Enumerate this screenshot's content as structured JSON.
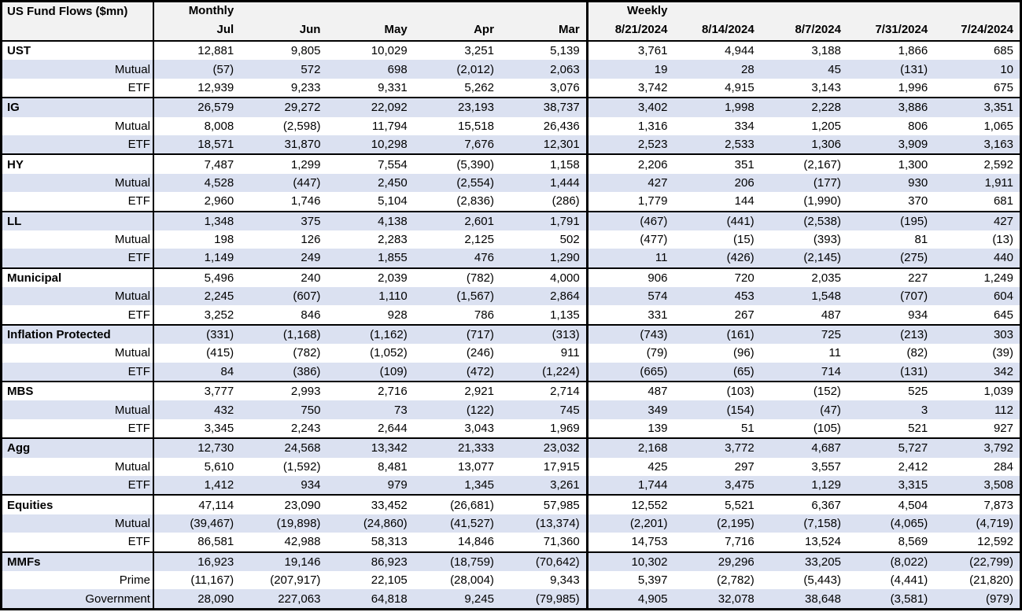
{
  "title": "US Fund Flows ($mn)",
  "colors": {
    "stripe": "#dbe1f1",
    "header_bg": "#f2f2f2",
    "border": "#000000",
    "text": "#000000"
  },
  "groups": {
    "monthly": {
      "label": "Monthly",
      "columns": [
        "Jul",
        "Jun",
        "May",
        "Apr",
        "Mar"
      ]
    },
    "weekly": {
      "label": "Weekly",
      "columns": [
        "8/21/2024",
        "8/14/2024",
        "8/7/2024",
        "7/31/2024",
        "7/24/2024"
      ]
    }
  },
  "sections": [
    {
      "name": "UST",
      "rows": [
        {
          "label": "UST",
          "monthly": [
            "12,881",
            "9,805",
            "10,029",
            "3,251",
            "5,139"
          ],
          "weekly": [
            "3,761",
            "4,944",
            "3,188",
            "1,866",
            "685"
          ]
        },
        {
          "label": "Mutual",
          "monthly": [
            "(57)",
            "572",
            "698",
            "(2,012)",
            "2,063"
          ],
          "weekly": [
            "19",
            "28",
            "45",
            "(131)",
            "10"
          ]
        },
        {
          "label": "ETF",
          "monthly": [
            "12,939",
            "9,233",
            "9,331",
            "5,262",
            "3,076"
          ],
          "weekly": [
            "3,742",
            "4,915",
            "3,143",
            "1,996",
            "675"
          ]
        }
      ]
    },
    {
      "name": "IG",
      "rows": [
        {
          "label": "IG",
          "monthly": [
            "26,579",
            "29,272",
            "22,092",
            "23,193",
            "38,737"
          ],
          "weekly": [
            "3,402",
            "1,998",
            "2,228",
            "3,886",
            "3,351"
          ]
        },
        {
          "label": "Mutual",
          "monthly": [
            "8,008",
            "(2,598)",
            "11,794",
            "15,518",
            "26,436"
          ],
          "weekly": [
            "1,316",
            "334",
            "1,205",
            "806",
            "1,065"
          ]
        },
        {
          "label": "ETF",
          "monthly": [
            "18,571",
            "31,870",
            "10,298",
            "7,676",
            "12,301"
          ],
          "weekly": [
            "2,523",
            "2,533",
            "1,306",
            "3,909",
            "3,163"
          ]
        }
      ]
    },
    {
      "name": "HY",
      "rows": [
        {
          "label": "HY",
          "monthly": [
            "7,487",
            "1,299",
            "7,554",
            "(5,390)",
            "1,158"
          ],
          "weekly": [
            "2,206",
            "351",
            "(2,167)",
            "1,300",
            "2,592"
          ]
        },
        {
          "label": "Mutual",
          "monthly": [
            "4,528",
            "(447)",
            "2,450",
            "(2,554)",
            "1,444"
          ],
          "weekly": [
            "427",
            "206",
            "(177)",
            "930",
            "1,911"
          ]
        },
        {
          "label": "ETF",
          "monthly": [
            "2,960",
            "1,746",
            "5,104",
            "(2,836)",
            "(286)"
          ],
          "weekly": [
            "1,779",
            "144",
            "(1,990)",
            "370",
            "681"
          ]
        }
      ]
    },
    {
      "name": "LL",
      "rows": [
        {
          "label": "LL",
          "monthly": [
            "1,348",
            "375",
            "4,138",
            "2,601",
            "1,791"
          ],
          "weekly": [
            "(467)",
            "(441)",
            "(2,538)",
            "(195)",
            "427"
          ]
        },
        {
          "label": "Mutual",
          "monthly": [
            "198",
            "126",
            "2,283",
            "2,125",
            "502"
          ],
          "weekly": [
            "(477)",
            "(15)",
            "(393)",
            "81",
            "(13)"
          ]
        },
        {
          "label": "ETF",
          "monthly": [
            "1,149",
            "249",
            "1,855",
            "476",
            "1,290"
          ],
          "weekly": [
            "11",
            "(426)",
            "(2,145)",
            "(275)",
            "440"
          ]
        }
      ]
    },
    {
      "name": "Municipal",
      "rows": [
        {
          "label": "Municipal",
          "monthly": [
            "5,496",
            "240",
            "2,039",
            "(782)",
            "4,000"
          ],
          "weekly": [
            "906",
            "720",
            "2,035",
            "227",
            "1,249"
          ]
        },
        {
          "label": "Mutual",
          "monthly": [
            "2,245",
            "(607)",
            "1,110",
            "(1,567)",
            "2,864"
          ],
          "weekly": [
            "574",
            "453",
            "1,548",
            "(707)",
            "604"
          ]
        },
        {
          "label": "ETF",
          "monthly": [
            "3,252",
            "846",
            "928",
            "786",
            "1,135"
          ],
          "weekly": [
            "331",
            "267",
            "487",
            "934",
            "645"
          ]
        }
      ]
    },
    {
      "name": "Inflation Protected",
      "rows": [
        {
          "label": "Inflation Protected",
          "monthly": [
            "(331)",
            "(1,168)",
            "(1,162)",
            "(717)",
            "(313)"
          ],
          "weekly": [
            "(743)",
            "(161)",
            "725",
            "(213)",
            "303"
          ]
        },
        {
          "label": "Mutual",
          "monthly": [
            "(415)",
            "(782)",
            "(1,052)",
            "(246)",
            "911"
          ],
          "weekly": [
            "(79)",
            "(96)",
            "11",
            "(82)",
            "(39)"
          ]
        },
        {
          "label": "ETF",
          "monthly": [
            "84",
            "(386)",
            "(109)",
            "(472)",
            "(1,224)"
          ],
          "weekly": [
            "(665)",
            "(65)",
            "714",
            "(131)",
            "342"
          ]
        }
      ]
    },
    {
      "name": "MBS",
      "rows": [
        {
          "label": "MBS",
          "monthly": [
            "3,777",
            "2,993",
            "2,716",
            "2,921",
            "2,714"
          ],
          "weekly": [
            "487",
            "(103)",
            "(152)",
            "525",
            "1,039"
          ]
        },
        {
          "label": "Mutual",
          "monthly": [
            "432",
            "750",
            "73",
            "(122)",
            "745"
          ],
          "weekly": [
            "349",
            "(154)",
            "(47)",
            "3",
            "112"
          ]
        },
        {
          "label": "ETF",
          "monthly": [
            "3,345",
            "2,243",
            "2,644",
            "3,043",
            "1,969"
          ],
          "weekly": [
            "139",
            "51",
            "(105)",
            "521",
            "927"
          ]
        }
      ]
    },
    {
      "name": "Agg",
      "rows": [
        {
          "label": "Agg",
          "monthly": [
            "12,730",
            "24,568",
            "13,342",
            "21,333",
            "23,032"
          ],
          "weekly": [
            "2,168",
            "3,772",
            "4,687",
            "5,727",
            "3,792"
          ]
        },
        {
          "label": "Mutual",
          "monthly": [
            "5,610",
            "(1,592)",
            "8,481",
            "13,077",
            "17,915"
          ],
          "weekly": [
            "425",
            "297",
            "3,557",
            "2,412",
            "284"
          ]
        },
        {
          "label": "ETF",
          "monthly": [
            "1,412",
            "934",
            "979",
            "1,345",
            "3,261"
          ],
          "weekly": [
            "1,744",
            "3,475",
            "1,129",
            "3,315",
            "3,508"
          ]
        }
      ]
    },
    {
      "name": "Equities",
      "rows": [
        {
          "label": "Equities",
          "monthly": [
            "47,114",
            "23,090",
            "33,452",
            "(26,681)",
            "57,985"
          ],
          "weekly": [
            "12,552",
            "5,521",
            "6,367",
            "4,504",
            "7,873"
          ]
        },
        {
          "label": "Mutual",
          "monthly": [
            "(39,467)",
            "(19,898)",
            "(24,860)",
            "(41,527)",
            "(13,374)"
          ],
          "weekly": [
            "(2,201)",
            "(2,195)",
            "(7,158)",
            "(4,065)",
            "(4,719)"
          ]
        },
        {
          "label": "ETF",
          "monthly": [
            "86,581",
            "42,988",
            "58,313",
            "14,846",
            "71,360"
          ],
          "weekly": [
            "14,753",
            "7,716",
            "13,524",
            "8,569",
            "12,592"
          ]
        }
      ]
    },
    {
      "name": "MMFs",
      "rows": [
        {
          "label": "MMFs",
          "monthly": [
            "16,923",
            "19,146",
            "86,923",
            "(18,759)",
            "(70,642)"
          ],
          "weekly": [
            "10,302",
            "29,296",
            "33,205",
            "(8,022)",
            "(22,799)"
          ]
        },
        {
          "label": "Prime",
          "monthly": [
            "(11,167)",
            "(207,917)",
            "22,105",
            "(28,004)",
            "9,343"
          ],
          "weekly": [
            "5,397",
            "(2,782)",
            "(5,443)",
            "(4,441)",
            "(21,820)"
          ]
        },
        {
          "label": "Government",
          "monthly": [
            "28,090",
            "227,063",
            "64,818",
            "9,245",
            "(79,985)"
          ],
          "weekly": [
            "4,905",
            "32,078",
            "38,648",
            "(3,581)",
            "(979)"
          ]
        }
      ]
    }
  ]
}
